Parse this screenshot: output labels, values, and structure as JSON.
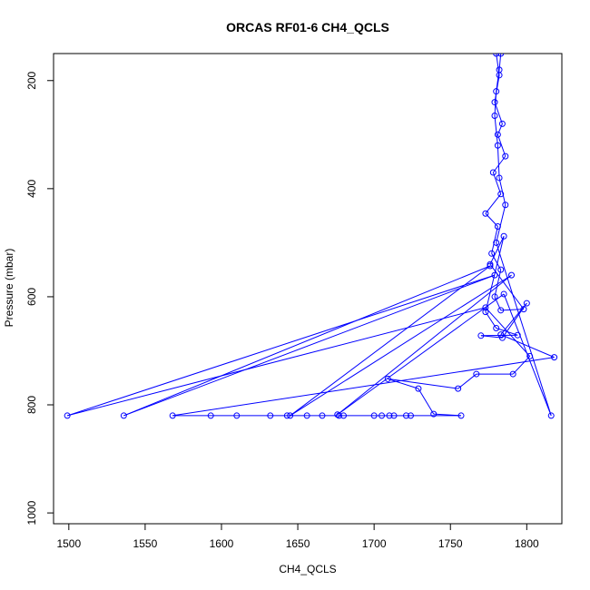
{
  "chart_data": {
    "type": "line",
    "title": "ORCAS RF01-6 CH4_QCLS",
    "xlabel": "CH4_QCLS",
    "ylabel": "Pressure (mbar)",
    "xlim": [
      1490,
      1823
    ],
    "ylim": [
      1020,
      150
    ],
    "y_reversed": true,
    "x_ticks": [
      1500,
      1550,
      1600,
      1650,
      1700,
      1750,
      1800
    ],
    "y_ticks": [
      200,
      400,
      600,
      800,
      1000
    ],
    "grid": false,
    "legend": "none",
    "series": [
      {
        "color": "#0000ff",
        "markers": "open-circle",
        "points": [
          [
            1780,
            150
          ],
          [
            1782,
            190
          ],
          [
            1779,
            240
          ],
          [
            1784,
            280
          ],
          [
            1781,
            300
          ],
          [
            1786,
            340
          ],
          [
            1778,
            370
          ],
          [
            1783,
            410
          ],
          [
            1773,
            446
          ],
          [
            1781,
            470
          ],
          [
            1777,
            520
          ],
          [
            1783,
            550
          ],
          [
            1779,
            600
          ],
          [
            1783,
            625
          ],
          [
            1798,
            623
          ],
          [
            1776,
            540
          ],
          [
            1785,
            488
          ],
          [
            1773,
            628
          ],
          [
            1780,
            658
          ],
          [
            1794,
            671
          ],
          [
            1770,
            672
          ],
          [
            1784,
            676
          ],
          [
            1800,
            612
          ],
          [
            1783,
            670
          ],
          [
            1818,
            712
          ],
          [
            1568,
            820
          ],
          [
            1593,
            820
          ],
          [
            1610,
            820
          ],
          [
            1632,
            820
          ],
          [
            1643,
            820
          ],
          [
            1656,
            820
          ],
          [
            1666,
            820
          ],
          [
            1677,
            820
          ],
          [
            1680,
            820
          ],
          [
            1700,
            820
          ],
          [
            1705,
            820
          ],
          [
            1710,
            820
          ],
          [
            1713,
            820
          ],
          [
            1721,
            820
          ],
          [
            1724,
            820
          ],
          [
            1757,
            820
          ],
          [
            1739,
            817
          ],
          [
            1729,
            770
          ],
          [
            1709,
            752
          ],
          [
            1755,
            770
          ],
          [
            1767,
            743
          ],
          [
            1791,
            743
          ],
          [
            1802,
            710
          ],
          [
            1773,
            620
          ],
          [
            1499,
            820
          ],
          [
            1779,
            560
          ],
          [
            1536,
            820
          ],
          [
            1776,
            543
          ],
          [
            1645,
            820
          ],
          [
            1790,
            560
          ],
          [
            1676,
            818
          ],
          [
            1785,
            595
          ],
          [
            1816,
            820
          ],
          [
            1780,
            500
          ],
          [
            1786,
            430
          ],
          [
            1782,
            380
          ],
          [
            1781,
            320
          ],
          [
            1779,
            265
          ],
          [
            1780,
            220
          ],
          [
            1782,
            180
          ],
          [
            1783,
            150
          ]
        ]
      }
    ]
  }
}
